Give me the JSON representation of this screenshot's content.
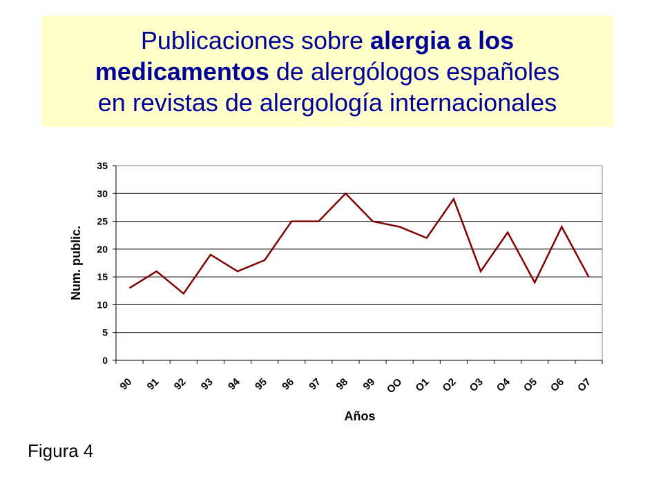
{
  "title": {
    "line1_a": "Publicaciones sobre ",
    "line1_b": "alergia a los",
    "line2_a": "medicamentos",
    "line2_b": " de alergólogos españoles",
    "line3": "en revistas de alergología internacionales",
    "color": "#000099",
    "background": "#ffffcc"
  },
  "figure_label": "Figura 4",
  "chart_data": {
    "type": "line",
    "title": "",
    "xlabel": "Años",
    "ylabel": "Num. public.",
    "categories": [
      "90",
      "91",
      "92",
      "93",
      "94",
      "95",
      "96",
      "97",
      "98",
      "99",
      "OO",
      "O1",
      "O2",
      "O3",
      "O4",
      "O5",
      "O6",
      "O7"
    ],
    "series": [
      {
        "values": [
          13,
          16,
          12,
          19,
          16,
          18,
          25,
          25,
          30,
          25,
          24,
          22,
          29,
          16,
          23,
          14,
          24,
          15
        ]
      }
    ],
    "ylim": [
      0,
      35
    ],
    "yticks": [
      0,
      5,
      10,
      15,
      20,
      25,
      30,
      35
    ],
    "grid": true,
    "line_color": "#800000",
    "legend": "none"
  }
}
